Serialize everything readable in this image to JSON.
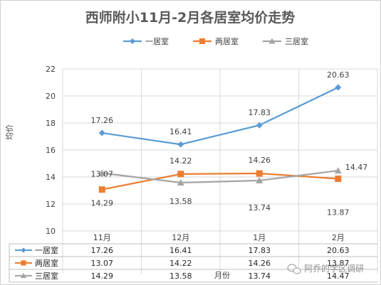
{
  "chart_data": {
    "type": "line",
    "title": "西师附小11月-2月各居室均价走势",
    "xlabel": "月份",
    "ylabel": "均价",
    "categories": [
      "11月",
      "12月",
      "1月",
      "2月"
    ],
    "ylim": [
      10,
      22
    ],
    "yticks": [
      10,
      12,
      14,
      16,
      18,
      20,
      22
    ],
    "grid": true,
    "legend_position": "top",
    "data_table": true,
    "series": [
      {
        "name": "一居室",
        "values": [
          17.26,
          16.41,
          17.83,
          20.63
        ],
        "color": "#5b9bd5",
        "marker": "diamond"
      },
      {
        "name": "两居室",
        "values": [
          13.07,
          14.22,
          14.26,
          13.87
        ],
        "color": "#ed7d31",
        "marker": "square"
      },
      {
        "name": "三居室",
        "values": [
          14.29,
          13.58,
          13.74,
          14.47
        ],
        "color": "#a5a5a5",
        "marker": "triangle"
      }
    ]
  },
  "watermark": "阿乔的学区调研"
}
